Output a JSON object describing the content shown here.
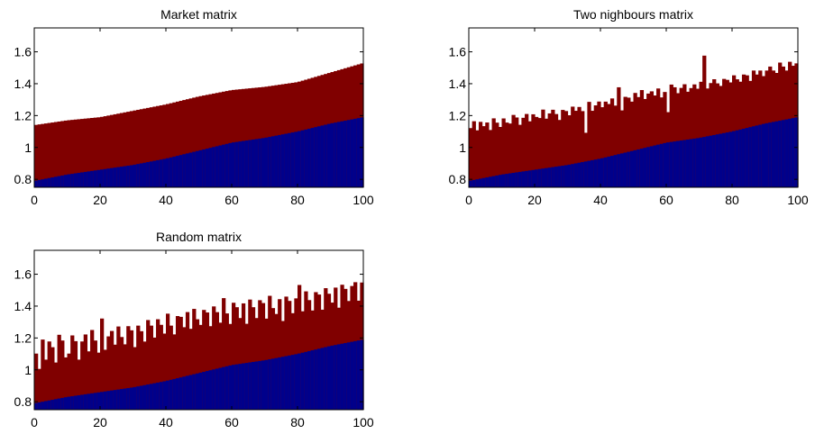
{
  "figure": {
    "background": "#ffffff",
    "axes_color": "#000000"
  },
  "colors": {
    "lower": "#00008b",
    "upper": "#800000"
  },
  "chart_data": [
    {
      "type": "bar",
      "stacked_overlay": true,
      "title": "Market matrix",
      "xlim": [
        0,
        100
      ],
      "ylim": [
        0.75,
        1.75
      ],
      "xticks": [
        0,
        20,
        40,
        60,
        80,
        100
      ],
      "yticks": [
        0.8,
        1,
        1.2,
        1.4,
        1.6
      ],
      "ytick_labels": [
        "0.8",
        "1",
        "1.2",
        "1.4",
        "1.6"
      ],
      "grid": false,
      "series": [
        {
          "anchors": [
            [
              0,
              0.79
            ],
            [
              10,
              0.83
            ],
            [
              20,
              0.86
            ],
            [
              30,
              0.89
            ],
            [
              40,
              0.93
            ],
            [
              50,
              0.98
            ],
            [
              60,
              1.03
            ],
            [
              70,
              1.06
            ],
            [
              80,
              1.1
            ],
            [
              90,
              1.15
            ],
            [
              100,
              1.19
            ]
          ]
        },
        {
          "anchors": [
            [
              0,
              1.14
            ],
            [
              10,
              1.17
            ],
            [
              20,
              1.19
            ],
            [
              30,
              1.23
            ],
            [
              40,
              1.27
            ],
            [
              50,
              1.32
            ],
            [
              60,
              1.36
            ],
            [
              70,
              1.38
            ],
            [
              80,
              1.41
            ],
            [
              90,
              1.47
            ],
            [
              100,
              1.53
            ]
          ],
          "noise": []
        }
      ]
    },
    {
      "type": "bar",
      "stacked_overlay": true,
      "title": "Two nighbours matrix",
      "xlim": [
        0,
        100
      ],
      "ylim": [
        0.75,
        1.75
      ],
      "xticks": [
        0,
        20,
        40,
        60,
        80,
        100
      ],
      "yticks": [
        0.8,
        1,
        1.2,
        1.4,
        1.6
      ],
      "ytick_labels": [
        "0.8",
        "1",
        "1.2",
        "1.4",
        "1.6"
      ],
      "grid": false,
      "series": [
        {
          "anchors": [
            [
              0,
              0.79
            ],
            [
              10,
              0.83
            ],
            [
              20,
              0.86
            ],
            [
              30,
              0.89
            ],
            [
              40,
              0.93
            ],
            [
              50,
              0.98
            ],
            [
              60,
              1.03
            ],
            [
              70,
              1.06
            ],
            [
              80,
              1.1
            ],
            [
              90,
              1.15
            ],
            [
              100,
              1.19
            ]
          ]
        },
        {
          "anchors": [
            [
              0,
              1.12
            ],
            [
              10,
              1.15
            ],
            [
              20,
              1.19
            ],
            [
              30,
              1.22
            ],
            [
              40,
              1.26
            ],
            [
              50,
              1.31
            ],
            [
              60,
              1.35
            ],
            [
              70,
              1.38
            ],
            [
              80,
              1.42
            ],
            [
              90,
              1.47
            ],
            [
              100,
              1.52
            ]
          ],
          "noise": [
            0.0,
            0.04,
            -0.02,
            0.03,
            0.0,
            0.02,
            -0.03,
            0.04,
            0.01,
            -0.02,
            0.03,
            0.0,
            -0.01,
            0.04,
            0.02,
            -0.03,
            0.01,
            0.03,
            -0.02,
            0.02,
            0.0,
            -0.01,
            0.04,
            -0.02,
            0.01,
            0.03,
            0.0,
            -0.04,
            0.02,
            0.01,
            -0.02,
            0.03,
            0.0,
            0.02,
            -0.01,
            -0.15,
            0.04,
            -0.02,
            0.01,
            0.03,
            -0.01,
            0.02,
            0.0,
            0.03,
            -0.02,
            0.09,
            -0.06,
            0.02,
            0.01,
            -0.02,
            0.03,
            0.0,
            0.04,
            -0.02,
            0.01,
            0.02,
            -0.01,
            0.03,
            -0.03,
            0.0,
            -0.13,
            0.04,
            0.02,
            -0.02,
            0.01,
            0.03,
            -0.02,
            0.0,
            0.02,
            -0.01,
            0.03,
            0.19,
            -0.02,
            0.01,
            0.03,
            0.0,
            -0.02,
            0.02,
            0.01,
            -0.01,
            0.03,
            0.0,
            -0.02,
            0.02,
            0.01,
            -0.03,
            0.03,
            0.0,
            0.02,
            -0.02,
            0.01,
            0.03,
            0.0,
            -0.02,
            0.04,
            0.01,
            -0.02,
            0.03,
            0.0,
            0.01
          ]
        }
      ]
    },
    {
      "type": "bar",
      "stacked_overlay": true,
      "title": "Random matrix",
      "xlim": [
        0,
        100
      ],
      "ylim": [
        0.75,
        1.75
      ],
      "xticks": [
        0,
        20,
        40,
        60,
        80,
        100
      ],
      "yticks": [
        0.8,
        1,
        1.2,
        1.4,
        1.6
      ],
      "ytick_labels": [
        "0.8",
        "1",
        "1.2",
        "1.4",
        "1.6"
      ],
      "grid": false,
      "series": [
        {
          "anchors": [
            [
              0,
              0.79
            ],
            [
              10,
              0.83
            ],
            [
              20,
              0.86
            ],
            [
              30,
              0.89
            ],
            [
              40,
              0.93
            ],
            [
              50,
              0.98
            ],
            [
              60,
              1.03
            ],
            [
              70,
              1.06
            ],
            [
              80,
              1.1
            ],
            [
              90,
              1.15
            ],
            [
              100,
              1.19
            ]
          ]
        },
        {
          "anchors": [
            [
              0,
              1.1
            ],
            [
              10,
              1.14
            ],
            [
              20,
              1.18
            ],
            [
              30,
              1.22
            ],
            [
              40,
              1.27
            ],
            [
              50,
              1.32
            ],
            [
              60,
              1.36
            ],
            [
              70,
              1.38
            ],
            [
              80,
              1.41
            ],
            [
              90,
              1.46
            ],
            [
              100,
              1.5
            ]
          ],
          "noise": [
            0.0,
            -0.1,
            0.08,
            -0.05,
            0.06,
            0.02,
            -0.08,
            0.09,
            0.05,
            -0.06,
            -0.04,
            0.07,
            0.03,
            -0.09,
            0.02,
            0.06,
            -0.05,
            0.08,
            0.01,
            -0.07,
            0.14,
            -0.06,
            0.02,
            0.05,
            -0.04,
            0.07,
            0.0,
            -0.05,
            0.06,
            0.03,
            -0.08,
            0.05,
            0.01,
            -0.06,
            0.07,
            0.03,
            -0.05,
            0.06,
            0.02,
            -0.04,
            0.08,
            0.0,
            -0.06,
            0.05,
            0.04,
            -0.03,
            0.06,
            -0.05,
            0.07,
            0.0,
            -0.04,
            0.05,
            0.03,
            -0.06,
            0.06,
            0.02,
            -0.05,
            0.1,
            0.0,
            -0.07,
            0.06,
            0.03,
            -0.04,
            0.05,
            -0.08,
            0.07,
            0.02,
            -0.05,
            0.06,
            0.04,
            -0.06,
            0.08,
            0.0,
            -0.04,
            0.05,
            -0.09,
            0.06,
            0.03,
            -0.05,
            0.04,
            0.12,
            -0.05,
            0.07,
            0.01,
            -0.06,
            0.05,
            0.03,
            -0.07,
            0.06,
            0.02,
            -0.04,
            0.05,
            -0.08,
            0.06,
            0.03,
            -0.05,
            0.04,
            0.06,
            -0.06,
            0.05
          ]
        }
      ]
    }
  ]
}
